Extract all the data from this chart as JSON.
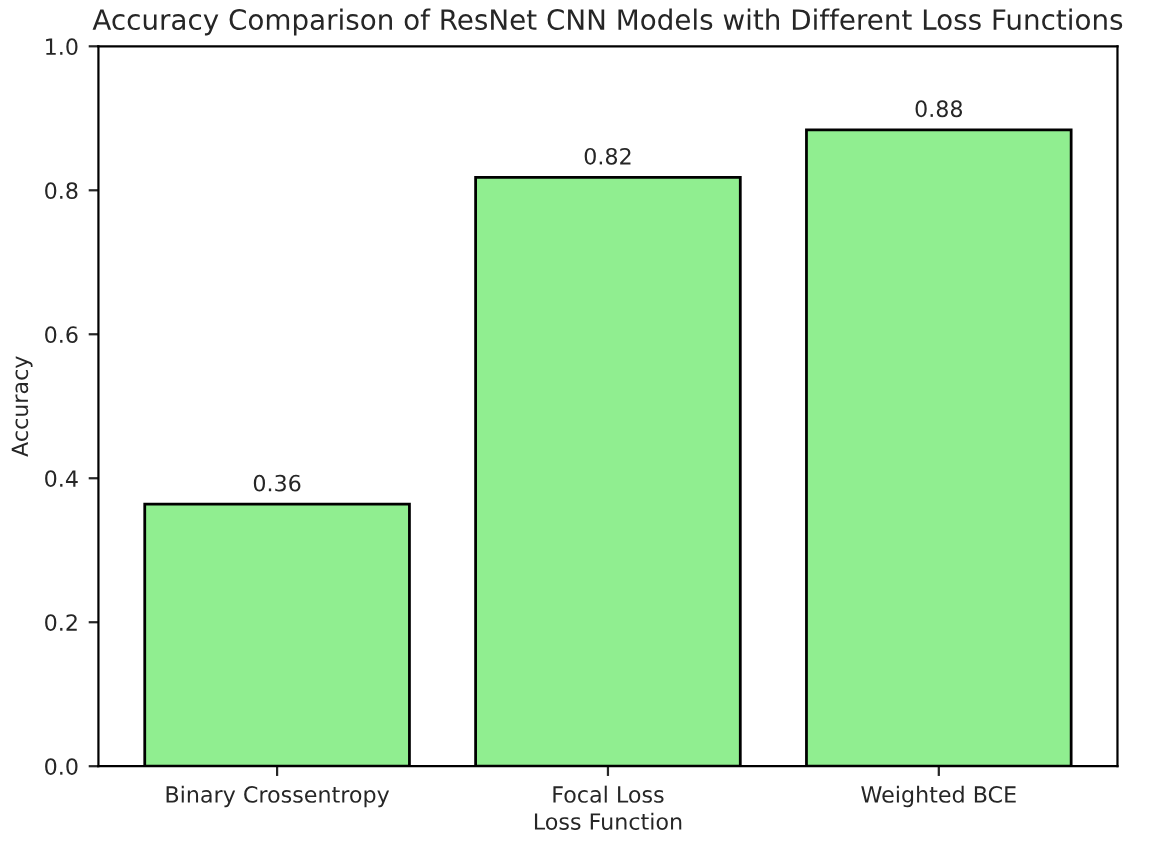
{
  "chart_data": {
    "type": "bar",
    "title": "Accuracy Comparison of ResNet CNN Models with Different Loss Functions",
    "xlabel": "Loss Function",
    "ylabel": "Accuracy",
    "categories": [
      "Binary Crossentropy",
      "Focal Loss",
      "Weighted BCE"
    ],
    "values": [
      0.364,
      0.818,
      0.884
    ],
    "value_labels": [
      "0.36",
      "0.82",
      "0.88"
    ],
    "color": "#90ee90",
    "ylim": [
      0,
      1
    ],
    "yticks": [
      {
        "value": 0,
        "label": "0.0"
      },
      {
        "value": 0.2,
        "label": "0.2"
      },
      {
        "value": 0.4,
        "label": "0.4"
      },
      {
        "value": 0.6,
        "label": "0.6"
      },
      {
        "value": 0.8,
        "label": "0.8"
      },
      {
        "value": 1,
        "label": "1.0"
      }
    ],
    "grid": false
  }
}
